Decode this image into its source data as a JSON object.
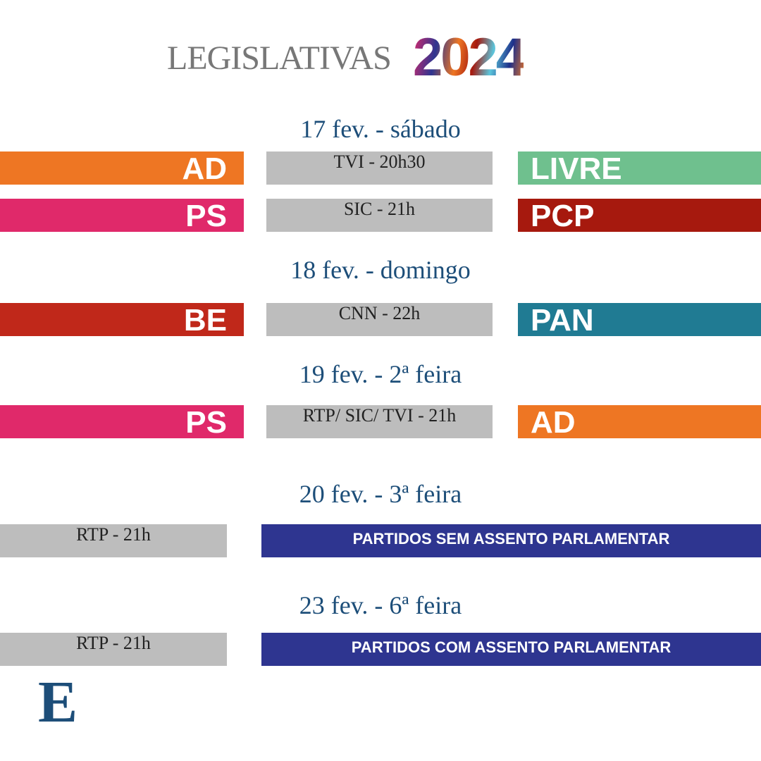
{
  "header": {
    "title": "LEGISLATIVAS",
    "year": "2024"
  },
  "days": [
    {
      "date": "17 fev. - sábado",
      "debates": [
        {
          "left": "AD",
          "channel": "TVI - 20h30",
          "right": "LIVRE"
        },
        {
          "left": "PS",
          "channel": "SIC - 21h",
          "right": "PCP"
        }
      ]
    },
    {
      "date": "18 fev. - domingo",
      "debates": [
        {
          "left": "BE",
          "channel": "CNN - 22h",
          "right": "PAN"
        }
      ]
    },
    {
      "date": "19 fev. - 2ª feira",
      "debates": [
        {
          "left": "PS",
          "channel": "RTP/ SIC/ TVI - 21h",
          "right": "AD"
        }
      ]
    }
  ],
  "group_debates": [
    {
      "date": "20 fev. - 3ª feira",
      "channel": "RTP - 21h",
      "label": "PARTIDOS SEM ASSENTO PARLAMENTAR"
    },
    {
      "date": "23 fev. - 6ª feira",
      "channel": "RTP - 21h",
      "label": "PARTIDOS COM ASSENTO PARLAMENTAR"
    }
  ],
  "logo": "E"
}
